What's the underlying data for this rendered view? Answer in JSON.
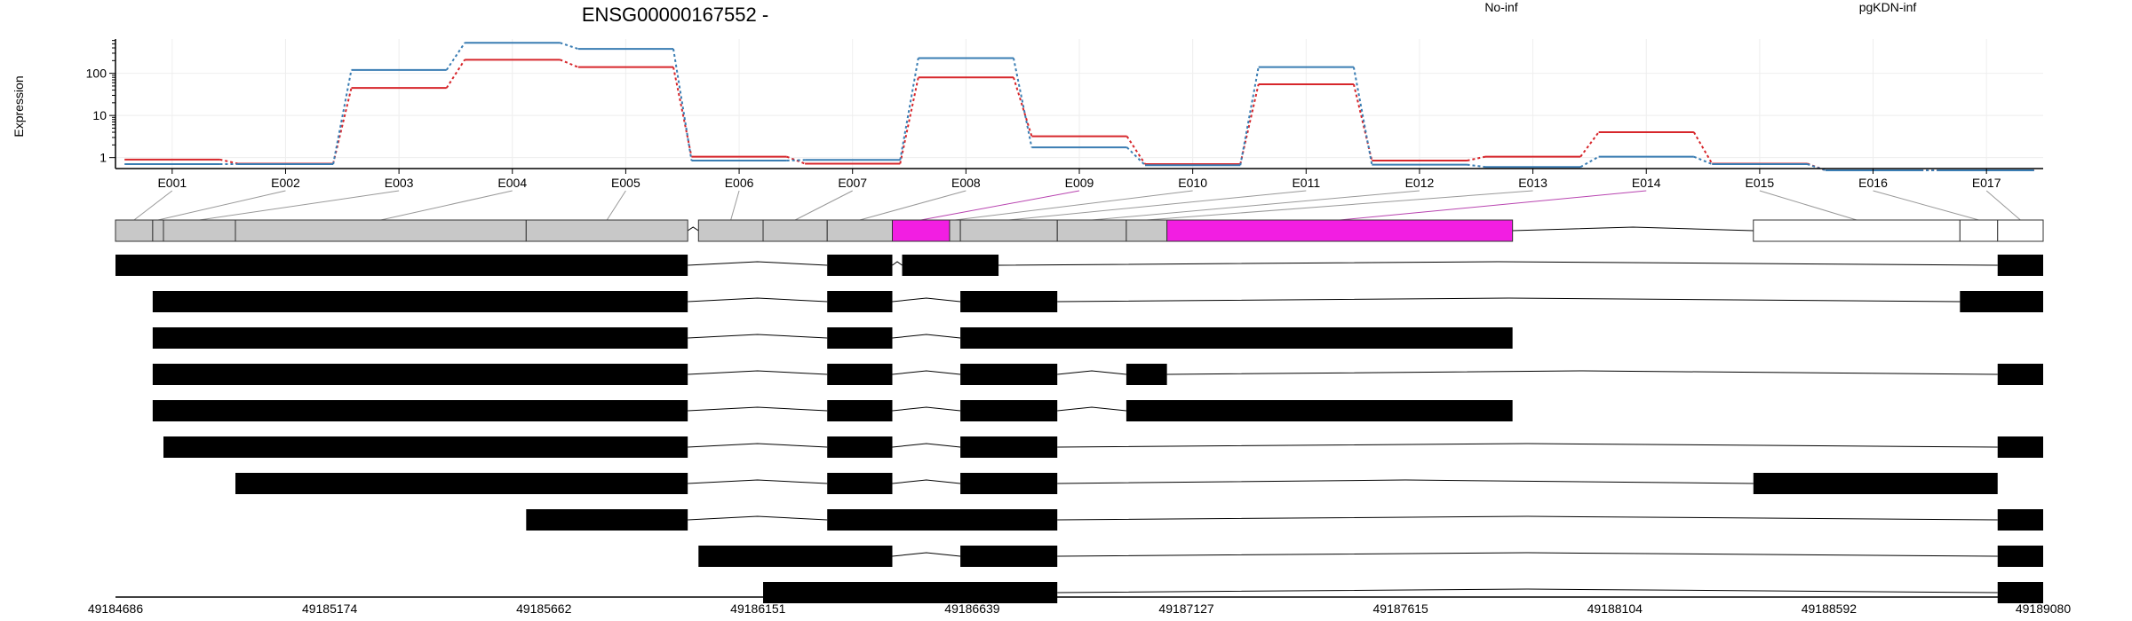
{
  "colors": {
    "no_inf": "#d7262b",
    "pgkdn_inf": "#3a7db3",
    "exon_default": "#c8c8c8",
    "exon_highlight": "#f21ee2",
    "exon_outline": "#333333",
    "transcript": "#000000",
    "connector_default": "#999999",
    "connector_highlight": "#b844b0"
  },
  "chart_data": {
    "type": "line",
    "title": "ENSG00000167552 -",
    "ylabel": "Expression",
    "y_scale": "log",
    "y_ticks": [
      1,
      10,
      100
    ],
    "y_tick_labels": [
      "1",
      "10",
      "100"
    ],
    "ylim": [
      0.55,
      650
    ],
    "grid": true,
    "legend_position": "top-right",
    "categories": [
      "E001",
      "E002",
      "E003",
      "E004",
      "E005",
      "E006",
      "E007",
      "E008",
      "E009",
      "E010",
      "E011",
      "E012",
      "E013",
      "E014",
      "E015",
      "E016",
      "E017"
    ],
    "series": [
      {
        "name": "No-inf",
        "color": "#d7262b",
        "values": [
          0.9,
          0.72,
          45,
          210,
          140,
          1.05,
          0.72,
          80,
          3.2,
          0.7,
          55,
          0.85,
          1.05,
          4.0,
          0.72,
          0.5,
          0.5
        ]
      },
      {
        "name": "pgKDN-inf",
        "color": "#3a7db3",
        "values": [
          0.7,
          0.7,
          120,
          530,
          380,
          0.85,
          0.88,
          230,
          1.75,
          0.66,
          140,
          0.68,
          0.6,
          1.05,
          0.7,
          0.5,
          0.5
        ]
      }
    ]
  },
  "exons": [
    {
      "id": "E001",
      "start": 49184686,
      "end": 49184762,
      "highlight": false
    },
    {
      "id": "E002",
      "start": 49184762,
      "end": 49184784,
      "highlight": false
    },
    {
      "id": "E003",
      "start": 49184784,
      "end": 49184931,
      "highlight": false
    },
    {
      "id": "E004",
      "start": 49184931,
      "end": 49185525,
      "highlight": false
    },
    {
      "id": "E005",
      "start": 49185525,
      "end": 49185855,
      "highlight": false
    },
    {
      "id": "E006",
      "start": 49185877,
      "end": 49186009,
      "highlight": false
    },
    {
      "id": "E007",
      "start": 49186009,
      "end": 49186140,
      "highlight": false
    },
    {
      "id": "E008",
      "start": 49186140,
      "end": 49186273,
      "highlight": false
    },
    {
      "id": "E009",
      "start": 49186273,
      "end": 49186390,
      "highlight": true
    },
    {
      "id": "E010",
      "start": 49186390,
      "end": 49186412,
      "highlight": false
    },
    {
      "id": "E011",
      "start": 49186412,
      "end": 49186610,
      "highlight": false
    },
    {
      "id": "E012",
      "start": 49186610,
      "end": 49186751,
      "highlight": false
    },
    {
      "id": "E013",
      "start": 49186751,
      "end": 49186834,
      "highlight": false
    },
    {
      "id": "E014",
      "start": 49186834,
      "end": 49187540,
      "highlight": true
    },
    {
      "id": "E015",
      "start": 49188032,
      "end": 49188454,
      "highlight": false,
      "white": true
    },
    {
      "id": "E016",
      "start": 49188454,
      "end": 49188531,
      "highlight": false,
      "white": true
    },
    {
      "id": "E017",
      "start": 49188531,
      "end": 49188624,
      "highlight": false,
      "white": true
    }
  ],
  "transcripts": [
    [
      [
        49184686,
        49185855
      ],
      [
        49186140,
        49186273
      ],
      [
        49186293,
        49186490
      ],
      [
        49188531,
        49188624
      ]
    ],
    [
      [
        49184762,
        49185855
      ],
      [
        49186140,
        49186273
      ],
      [
        49186412,
        49186610
      ],
      [
        49188454,
        49188624
      ]
    ],
    [
      [
        49184762,
        49185855
      ],
      [
        49186140,
        49186273
      ],
      [
        49186412,
        49187540
      ]
    ],
    [
      [
        49184762,
        49185855
      ],
      [
        49186140,
        49186273
      ],
      [
        49186412,
        49186610
      ],
      [
        49186751,
        49186834
      ],
      [
        49188531,
        49188624
      ]
    ],
    [
      [
        49184762,
        49185855
      ],
      [
        49186140,
        49186273
      ],
      [
        49186412,
        49186610
      ],
      [
        49186751,
        49187540
      ]
    ],
    [
      [
        49184784,
        49185855
      ],
      [
        49186140,
        49186273
      ],
      [
        49186412,
        49186610
      ],
      [
        49188531,
        49188624
      ]
    ],
    [
      [
        49184931,
        49185855
      ],
      [
        49186140,
        49186273
      ],
      [
        49186412,
        49186610
      ],
      [
        49188032,
        49188531
      ]
    ],
    [
      [
        49185525,
        49185855
      ],
      [
        49186140,
        49186610
      ],
      [
        49188531,
        49188624
      ]
    ],
    [
      [
        49185877,
        49186273
      ],
      [
        49186412,
        49186610
      ],
      [
        49188531,
        49188624
      ]
    ],
    [
      [
        49186009,
        49186610
      ],
      [
        49188531,
        49188624
      ]
    ]
  ],
  "genomic_axis": {
    "min": 49184686,
    "max": 49188624,
    "tick_labels": [
      "49184686",
      "49185174",
      "49185662",
      "49186151",
      "49186639",
      "49187127",
      "49187615",
      "49188104",
      "49188592",
      "49189080"
    ]
  }
}
